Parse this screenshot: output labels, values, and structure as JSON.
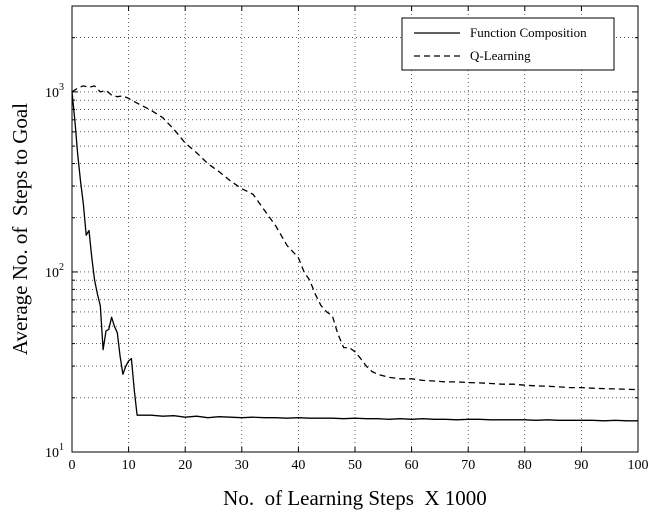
{
  "chart_data": {
    "type": "line",
    "title": "",
    "xlabel": "No.  of Learning Steps  X 1000",
    "ylabel": "Average No. of  Steps to Goal",
    "xlim": [
      0,
      100
    ],
    "ylim": [
      10,
      3000
    ],
    "yscale": "log",
    "xticks": [
      0,
      10,
      20,
      30,
      40,
      50,
      60,
      70,
      80,
      90,
      100
    ],
    "ytick_labels": [
      {
        "value": 10,
        "base": "10",
        "exp": "1"
      },
      {
        "value": 100,
        "base": "10",
        "exp": "2"
      },
      {
        "value": 1000,
        "base": "10",
        "exp": "3"
      }
    ],
    "grid": true,
    "legend_position": "top-right",
    "series": [
      {
        "name": "Function Composition",
        "style": "solid",
        "color": "#000000",
        "x": [
          0,
          0.5,
          1,
          1.5,
          2,
          2.5,
          3,
          3.5,
          4,
          4.5,
          5,
          5.5,
          6,
          6.5,
          7,
          7.5,
          8,
          8.5,
          9,
          9.5,
          10,
          10.5,
          11,
          11.5,
          12,
          14,
          16,
          18,
          20,
          22,
          24,
          26,
          28,
          30,
          32,
          34,
          36,
          38,
          40,
          42,
          44,
          46,
          48,
          50,
          52,
          54,
          56,
          58,
          60,
          62,
          64,
          66,
          68,
          70,
          72,
          74,
          76,
          78,
          80,
          82,
          84,
          86,
          88,
          90,
          92,
          94,
          96,
          98,
          100
        ],
        "y": [
          1000,
          700,
          450,
          320,
          240,
          160,
          170,
          120,
          90,
          75,
          65,
          37,
          47,
          48,
          56,
          50,
          46,
          34,
          27,
          30,
          32,
          33,
          22,
          16,
          16,
          16,
          15.8,
          15.9,
          15.6,
          15.8,
          15.5,
          15.7,
          15.6,
          15.5,
          15.6,
          15.5,
          15.5,
          15.4,
          15.5,
          15.4,
          15.4,
          15.4,
          15.3,
          15.4,
          15.3,
          15.3,
          15.2,
          15.3,
          15.2,
          15.3,
          15.2,
          15.2,
          15.1,
          15.2,
          15.2,
          15.1,
          15.1,
          15.1,
          15.1,
          15.0,
          15.1,
          15.0,
          15.0,
          15.0,
          15.0,
          14.9,
          15.0,
          14.9,
          14.9
        ]
      },
      {
        "name": "Q-Learning",
        "style": "dashed",
        "color": "#000000",
        "x": [
          0,
          1,
          2,
          3,
          4,
          5,
          6,
          7,
          8,
          9,
          10,
          12,
          14,
          16,
          18,
          20,
          22,
          24,
          26,
          28,
          30,
          32,
          34,
          36,
          38,
          40,
          41,
          42,
          43,
          44,
          45,
          46,
          47,
          48,
          49,
          50,
          51,
          52,
          53,
          54,
          56,
          58,
          60,
          62,
          64,
          66,
          68,
          70,
          72,
          74,
          76,
          78,
          80,
          82,
          84,
          86,
          88,
          90,
          92,
          94,
          96,
          98,
          100
        ],
        "y": [
          1000,
          1050,
          1080,
          1060,
          1080,
          1000,
          1020,
          960,
          940,
          950,
          920,
          850,
          790,
          720,
          620,
          520,
          460,
          400,
          360,
          320,
          290,
          270,
          220,
          180,
          140,
          120,
          100,
          90,
          75,
          65,
          60,
          57,
          45,
          38,
          38,
          36,
          33,
          30,
          28,
          27,
          26,
          25.5,
          25.5,
          25,
          24.8,
          24.5,
          24.5,
          24.3,
          24.2,
          24,
          23.8,
          23.8,
          23.5,
          23.3,
          23.2,
          23,
          22.8,
          22.8,
          22.6,
          22.5,
          22.4,
          22.3,
          22.2
        ]
      }
    ]
  }
}
